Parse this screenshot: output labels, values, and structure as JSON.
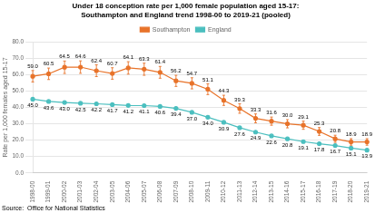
{
  "chart_data": {
    "type": "line",
    "title": "Under 18 conception rate per 1,000 female population aged 15-17:\nSouthampton and England trend 1998-00 to 2019-21 (pooled)",
    "ylabel": "Rate per 1,000 females aged 15-17",
    "source": "Source:  Office for National Statistics",
    "categories": [
      "1998-00",
      "1999-01",
      "2000-02",
      "2001-03",
      "2002-04",
      "2003-05",
      "2004-06",
      "2005-07",
      "2006-08",
      "2007-09",
      "2008-10",
      "2009-11",
      "2010-12",
      "2011-13",
      "2012-14",
      "2013-15",
      "2014-16",
      "2015-17",
      "2016-18",
      "2017-19",
      "2018-20",
      "2019-21"
    ],
    "series": [
      {
        "name": "Southampton",
        "color": "#E8732A",
        "values": [
          59.0,
          60.5,
          64.5,
          64.6,
          62.4,
          60.7,
          64.1,
          63.3,
          61.4,
          56.2,
          54.7,
          51.1,
          44.3,
          39.3,
          33.3,
          31.6,
          30.0,
          29.1,
          25.3,
          20.8,
          18.9,
          18.9
        ],
        "value_labels": [
          "59.0",
          "60.5",
          "64.5",
          "64.6",
          "62.4",
          "60.7",
          "64.1",
          "63.3",
          "61.4",
          "56.2",
          "54.7",
          "51.1",
          "44.3",
          "39.3",
          "33.3",
          "31.6",
          "30.0",
          "29.1",
          "25.3",
          "20.8",
          "18.9",
          "18.9"
        ],
        "errors": [
          3.5,
          3.5,
          3.8,
          3.8,
          3.6,
          3.5,
          3.8,
          3.7,
          3.6,
          3.4,
          3.4,
          3.3,
          3.1,
          2.9,
          2.7,
          2.5,
          2.5,
          2.5,
          2.4,
          2.2,
          2.0,
          2.0
        ]
      },
      {
        "name": "England",
        "color": "#4BBFBF",
        "values": [
          45.0,
          43.6,
          43.0,
          42.5,
          42.2,
          41.7,
          41.2,
          41.1,
          40.6,
          39.4,
          37.0,
          34.0,
          30.9,
          27.6,
          24.9,
          22.6,
          20.8,
          19.1,
          17.8,
          16.7,
          15.1,
          13.9
        ],
        "value_labels": [
          "45.0",
          "43.6",
          "43.0",
          "42.5",
          "42.2",
          "41.7",
          "41.2",
          "41.1",
          "40.6",
          "39.4",
          "37.0",
          "34.0",
          "30.9",
          "27.6",
          "24.9",
          "22.6",
          "20.8",
          "19.1",
          "17.8",
          "16.7",
          "15.1",
          "13.9"
        ]
      }
    ],
    "ylim": [
      0,
      80
    ],
    "yticks": [
      {
        "value": 0,
        "label": "0.0"
      },
      {
        "value": 10,
        "label": "10.0"
      },
      {
        "value": 20,
        "label": "20.0"
      },
      {
        "value": 30,
        "label": "30.0"
      },
      {
        "value": 40,
        "label": "40.0"
      },
      {
        "value": 50,
        "label": "50.0"
      },
      {
        "value": 60,
        "label": "60.0"
      },
      {
        "value": 70,
        "label": "70.0"
      },
      {
        "value": 80,
        "label": "80.0"
      }
    ],
    "grid": "y",
    "legend": "top",
    "data_labels": true,
    "marker": "circle"
  }
}
